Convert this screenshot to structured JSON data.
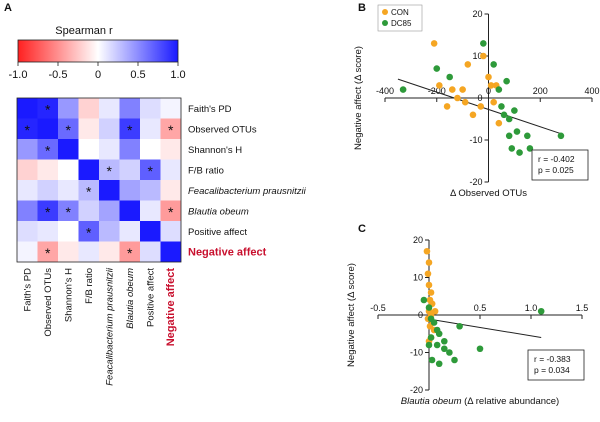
{
  "panels": {
    "a": "A",
    "b": "B",
    "c": "C"
  },
  "colors": {
    "con": "#f5a623",
    "dc85": "#2e9a3a",
    "negative_label": "#c8102e"
  },
  "chart_data": [
    {
      "type": "heatmap",
      "title": "Spearman r",
      "colorbar": {
        "min": -1.0,
        "max": 1.0,
        "ticks": [
          "-1.0",
          "-0.5",
          "0",
          "0.5",
          "1.0"
        ],
        "low_color": "#ff2020",
        "mid_color": "#ffffff",
        "high_color": "#1a1aff"
      },
      "labels": [
        {
          "text": "Faith's PD",
          "italic": false,
          "emphasis": false
        },
        {
          "text": "Observed OTUs",
          "italic": false,
          "emphasis": false
        },
        {
          "text": "Shannon's H",
          "italic": false,
          "emphasis": false
        },
        {
          "text": "F/B ratio",
          "italic": false,
          "emphasis": false
        },
        {
          "text": "Feacalibacterium prausnitzii",
          "italic": true,
          "emphasis": false
        },
        {
          "text": "Blautia obeum",
          "italic": true,
          "emphasis": false
        },
        {
          "text": "Positive affect",
          "italic": false,
          "emphasis": false
        },
        {
          "text": "Negative affect",
          "italic": false,
          "emphasis": true
        }
      ],
      "matrix": [
        [
          1.0,
          0.95,
          0.45,
          -0.2,
          0.1,
          0.55,
          0.15,
          0.05
        ],
        [
          0.95,
          1.0,
          0.65,
          -0.1,
          0.2,
          0.85,
          0.1,
          -0.4
        ],
        [
          0.45,
          0.65,
          1.0,
          0.0,
          0.1,
          0.55,
          0.0,
          -0.1
        ],
        [
          -0.2,
          -0.1,
          0.0,
          1.0,
          0.3,
          0.2,
          0.7,
          0.1
        ],
        [
          0.1,
          0.2,
          0.1,
          0.3,
          1.0,
          0.4,
          0.3,
          -0.1
        ],
        [
          0.55,
          0.85,
          0.55,
          0.2,
          0.4,
          1.0,
          0.1,
          -0.45
        ],
        [
          0.15,
          0.1,
          0.0,
          0.7,
          0.3,
          0.1,
          1.0,
          0.15
        ],
        [
          0.05,
          -0.4,
          -0.1,
          0.1,
          -0.1,
          -0.45,
          0.15,
          1.0
        ]
      ],
      "significant": [
        [
          0,
          1
        ],
        [
          1,
          0
        ],
        [
          1,
          2
        ],
        [
          1,
          5
        ],
        [
          1,
          7
        ],
        [
          2,
          1
        ],
        [
          3,
          4
        ],
        [
          3,
          6
        ],
        [
          4,
          3
        ],
        [
          5,
          1
        ],
        [
          5,
          2
        ],
        [
          5,
          7
        ],
        [
          6,
          3
        ],
        [
          7,
          1
        ],
        [
          7,
          5
        ]
      ]
    },
    {
      "type": "scatter",
      "panel": "B",
      "xlabel": "Δ Observed OTUs",
      "ylabel": "Negative affect (Δ score)",
      "xlim": [
        -400,
        400
      ],
      "ylim": [
        -20,
        20
      ],
      "xticks": [
        -400,
        -200,
        0,
        200,
        400
      ],
      "yticks": [
        -20,
        -10,
        0,
        10,
        20
      ],
      "legend": [
        "CON",
        "DC85"
      ],
      "series": [
        {
          "name": "CON",
          "points": [
            [
              -210,
              13
            ],
            [
              -190,
              3
            ],
            [
              -160,
              -2
            ],
            [
              -140,
              2
            ],
            [
              -120,
              0
            ],
            [
              -100,
              2
            ],
            [
              -90,
              -1
            ],
            [
              -60,
              -4
            ],
            [
              -30,
              -2
            ],
            [
              0,
              5
            ],
            [
              10,
              3
            ],
            [
              20,
              -1
            ],
            [
              30,
              3
            ],
            [
              -20,
              10
            ],
            [
              -80,
              8
            ],
            [
              40,
              -6
            ]
          ]
        },
        {
          "name": "DC85",
          "points": [
            [
              -330,
              2
            ],
            [
              -200,
              7
            ],
            [
              -150,
              5
            ],
            [
              -20,
              13
            ],
            [
              20,
              8
            ],
            [
              40,
              2
            ],
            [
              50,
              -2
            ],
            [
              60,
              -4
            ],
            [
              80,
              -9
            ],
            [
              90,
              -12
            ],
            [
              100,
              -3
            ],
            [
              110,
              -8
            ],
            [
              120,
              -13
            ],
            [
              150,
              -9
            ],
            [
              160,
              -12
            ],
            [
              80,
              -5
            ],
            [
              280,
              -9
            ],
            [
              70,
              4
            ]
          ]
        }
      ],
      "fit": {
        "x": [
          -350,
          280
        ],
        "y": [
          4.5,
          -8.5
        ]
      },
      "stats": [
        "r = -0.402",
        "p = 0.025"
      ]
    },
    {
      "type": "scatter",
      "panel": "C",
      "xlabel_italic": "Blautia obeum",
      "xlabel_rest": " (Δ relative abundance)",
      "ylabel": "Negative affect (Δ score)",
      "xlim": [
        -0.5,
        1.5
      ],
      "ylim": [
        -20,
        20
      ],
      "xticks": [
        "-0.5",
        "0.5",
        "1.0",
        "1.5"
      ],
      "xtick_values": [
        -0.5,
        0.5,
        1.0,
        1.5
      ],
      "yticks": [
        -20,
        -10,
        0,
        10,
        20
      ],
      "series": [
        {
          "name": "CON",
          "points": [
            [
              -0.02,
              17
            ],
            [
              0.0,
              14
            ],
            [
              -0.01,
              11
            ],
            [
              0.0,
              8
            ],
            [
              0.02,
              6
            ],
            [
              0.01,
              4
            ],
            [
              0.03,
              3
            ],
            [
              0.0,
              1
            ],
            [
              0.02,
              0
            ],
            [
              -0.01,
              -1
            ],
            [
              0.04,
              -2
            ],
            [
              0.01,
              -3
            ],
            [
              0.05,
              -4
            ],
            [
              0.02,
              -6
            ],
            [
              0.0,
              -7
            ],
            [
              0.03,
              3
            ],
            [
              0.06,
              1
            ]
          ]
        },
        {
          "name": "DC85",
          "points": [
            [
              -0.05,
              4
            ],
            [
              0.0,
              2
            ],
            [
              0.02,
              -1
            ],
            [
              0.05,
              -2
            ],
            [
              0.08,
              -4
            ],
            [
              0.1,
              -5
            ],
            [
              0.02,
              -6
            ],
            [
              0.0,
              -8
            ],
            [
              0.08,
              -8
            ],
            [
              0.15,
              -9
            ],
            [
              0.2,
              -10
            ],
            [
              0.25,
              -12
            ],
            [
              0.03,
              -12
            ],
            [
              0.1,
              -13
            ],
            [
              0.5,
              -9
            ],
            [
              0.15,
              -7
            ],
            [
              1.1,
              1
            ],
            [
              0.3,
              -3
            ]
          ]
        }
      ],
      "fit": {
        "x": [
          -0.02,
          1.1
        ],
        "y": [
          -1,
          -6
        ]
      },
      "stats": [
        "r = -0.383",
        "p = 0.034"
      ]
    }
  ]
}
